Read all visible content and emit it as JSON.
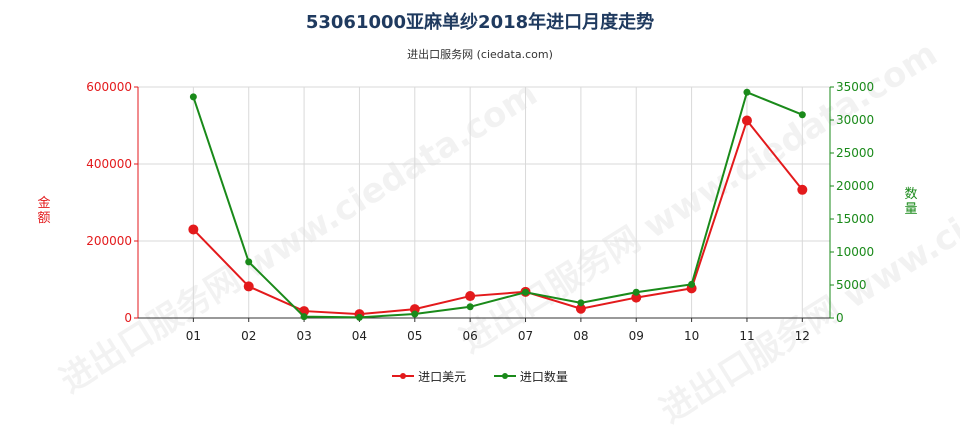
{
  "title": "53061000亚麻单纱2018年进口月度走势",
  "subtitle": "进出口服务网 (ciedata.com)",
  "watermark": "进出口服务网 www.ciedata.com",
  "chart_data": {
    "type": "line",
    "categories": [
      "01",
      "02",
      "03",
      "04",
      "05",
      "06",
      "07",
      "08",
      "09",
      "10",
      "11",
      "12"
    ],
    "series": [
      {
        "name": "进口美元",
        "axis": "left",
        "color": "#e31a1c",
        "values": [
          230000,
          82000,
          18000,
          10000,
          23000,
          57000,
          68000,
          24000,
          53000,
          77000,
          513000,
          333000
        ]
      },
      {
        "name": "进口数量",
        "axis": "right",
        "color": "#1a8a1a",
        "values": [
          33500,
          8500,
          200,
          100,
          600,
          1700,
          3900,
          2300,
          3900,
          5100,
          34200,
          30800
        ]
      }
    ],
    "y_left": {
      "label": "金额",
      "min": 0,
      "max": 600000,
      "ticks": [
        0,
        200000,
        400000,
        600000
      ],
      "color": "#e31a1c"
    },
    "y_right": {
      "label": "数量",
      "min": 0,
      "max": 35000,
      "ticks": [
        0,
        5000,
        10000,
        15000,
        20000,
        25000,
        30000,
        35000
      ],
      "color": "#1a8a1a"
    },
    "grid": true,
    "legend_position": "bottom"
  }
}
